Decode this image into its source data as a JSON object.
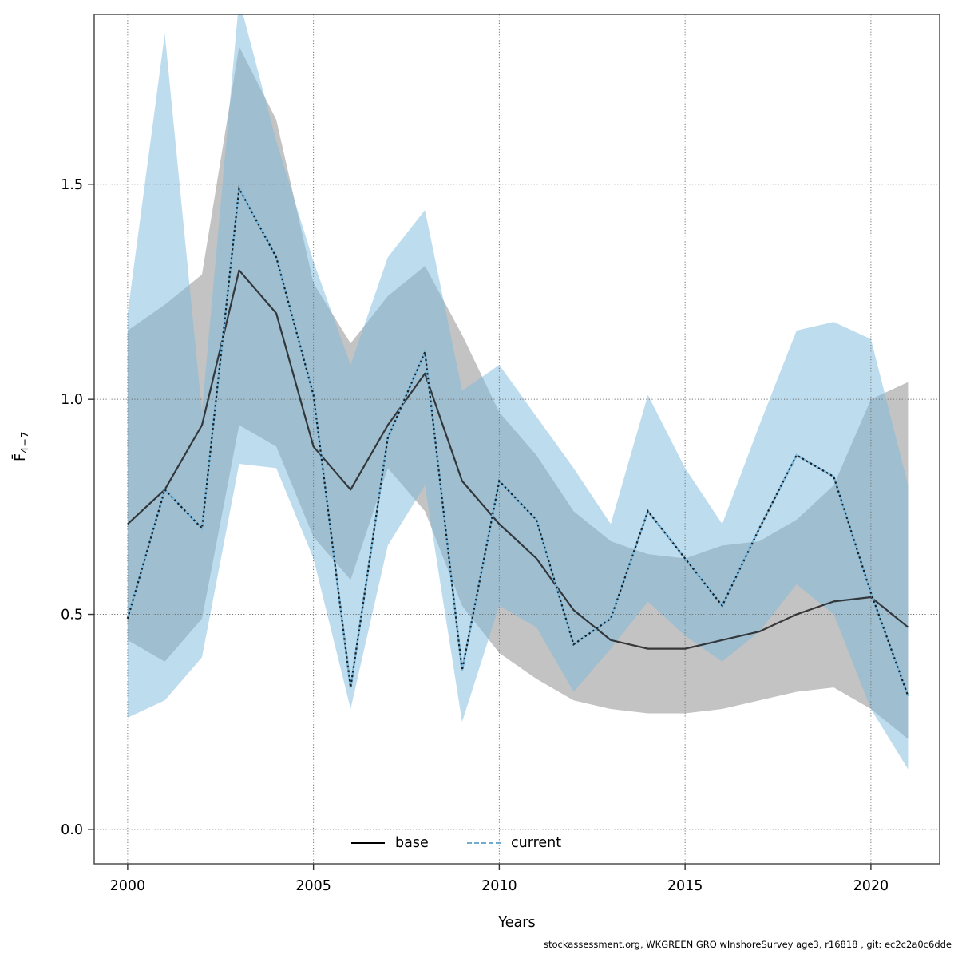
{
  "chart_data": {
    "type": "line",
    "x": [
      2000,
      2001,
      2002,
      2003,
      2004,
      2005,
      2006,
      2007,
      2008,
      2009,
      2010,
      2011,
      2012,
      2013,
      2014,
      2015,
      2016,
      2017,
      2018,
      2019,
      2020,
      2021
    ],
    "series": [
      {
        "name": "base",
        "style": "solid",
        "line_color": "#1a1a1a",
        "band_color": "#c3c3c3",
        "values": [
          0.71,
          0.79,
          0.94,
          1.3,
          1.2,
          0.89,
          0.79,
          0.94,
          1.06,
          0.81,
          0.71,
          0.63,
          0.51,
          0.44,
          0.42,
          0.42,
          0.44,
          0.46,
          0.5,
          0.53,
          0.54,
          0.47
        ],
        "lower": [
          0.44,
          0.39,
          0.49,
          0.94,
          0.89,
          0.68,
          0.58,
          0.84,
          0.74,
          0.52,
          0.41,
          0.35,
          0.3,
          0.28,
          0.27,
          0.27,
          0.28,
          0.3,
          0.32,
          0.33,
          0.28,
          0.21
        ],
        "upper": [
          1.16,
          1.22,
          1.29,
          1.82,
          1.65,
          1.27,
          1.13,
          1.24,
          1.31,
          1.15,
          0.97,
          0.87,
          0.74,
          0.67,
          0.64,
          0.63,
          0.66,
          0.67,
          0.72,
          0.8,
          1.0,
          1.04
        ]
      },
      {
        "name": "current",
        "style": "dotted",
        "line_color": "#0a0a0a",
        "underlay_color": "#7db9dc",
        "band_color": "#7bb9dd",
        "band_opacity": 0.5,
        "values": [
          0.49,
          0.79,
          0.7,
          1.49,
          1.33,
          1.01,
          0.33,
          0.91,
          1.11,
          0.37,
          0.81,
          0.72,
          0.43,
          0.49,
          0.74,
          0.63,
          0.52,
          0.7,
          0.87,
          0.82,
          0.55,
          0.31
        ],
        "lower": [
          0.26,
          0.3,
          0.4,
          0.85,
          0.84,
          0.63,
          0.28,
          0.66,
          0.8,
          0.25,
          0.52,
          0.47,
          0.32,
          0.42,
          0.53,
          0.45,
          0.39,
          0.46,
          0.57,
          0.5,
          0.28,
          0.14
        ],
        "upper": [
          1.2,
          1.85,
          0.97,
          1.93,
          1.6,
          1.32,
          1.08,
          1.33,
          1.44,
          1.02,
          1.08,
          0.96,
          0.84,
          0.71,
          1.01,
          0.84,
          0.71,
          0.94,
          1.16,
          1.18,
          1.14,
          0.8
        ]
      }
    ],
    "xlabel": "Years",
    "ylabel_main": "F̄",
    "ylabel_sub": "4−7",
    "x_ticks": [
      2000,
      2005,
      2010,
      2015,
      2020
    ],
    "y_ticks": [
      0.0,
      0.5,
      1.0,
      1.5
    ],
    "xlim": [
      1999.1,
      2021.85
    ],
    "ylim": [
      -0.08,
      1.895
    ],
    "grid": true,
    "grid_color": "#6e6e6e",
    "frame_color": "#4d4d4d",
    "legend_position": "bottom-center-inside"
  },
  "legend": {
    "items": [
      {
        "label": "base"
      },
      {
        "label": "current"
      }
    ]
  },
  "footer": "stockassessment.org, WKGREEN GRO wInshoreSurvey age3, r16818 , git: ec2c2a0c6dde"
}
